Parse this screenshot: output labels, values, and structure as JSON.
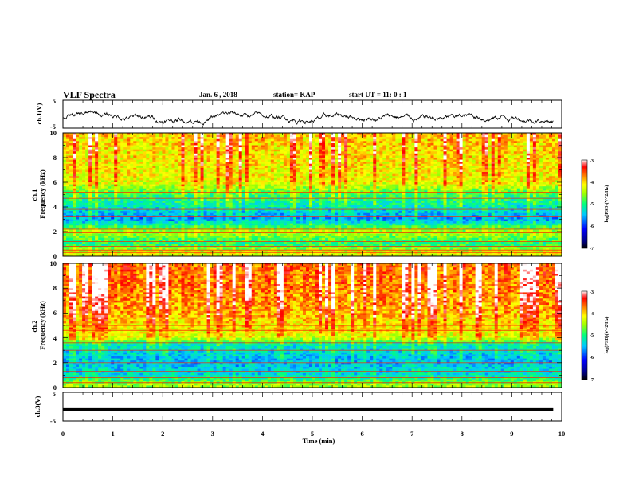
{
  "header": {
    "title": "VLF Spectra",
    "date": "Jan. 6 , 2018",
    "station": "station= KAP",
    "start_ut": "start UT = 11: 0 : 1"
  },
  "chart_data": [
    {
      "id": "ch1-waveform",
      "type": "line",
      "ylabel": "ch.1(V)",
      "ylim": [
        -5,
        5
      ],
      "yticks": [
        "5",
        "-5"
      ],
      "xlim": [
        0,
        10
      ],
      "series": [
        {
          "color": "#000000"
        }
      ]
    },
    {
      "id": "ch1-spectrogram",
      "type": "heatmap",
      "ylabel": "ch.1\nFrequency (kHz)",
      "ylim": [
        0,
        10
      ],
      "yticks": [
        "10",
        "8",
        "6",
        "4",
        "2",
        "0"
      ],
      "xlim": [
        0,
        10
      ],
      "colorbar": {
        "label": "log(PSD)(V^2/Hz)",
        "ticks": [
          "-3",
          "-4",
          "-5",
          "-6",
          "-7"
        ],
        "range": [
          -7,
          -3
        ]
      },
      "levels_by_frequency": [
        {
          "f": 10,
          "level": -3.8
        },
        {
          "f": 8,
          "level": -4.0
        },
        {
          "f": 6,
          "level": -4.1
        },
        {
          "f": 5,
          "level": -4.8
        },
        {
          "f": 4,
          "level": -5.2
        },
        {
          "f": 3,
          "level": -5.6
        },
        {
          "f": 2,
          "level": -4.4
        },
        {
          "f": 1,
          "level": -5.0
        },
        {
          "f": 0.3,
          "level": -4.2
        }
      ],
      "tones_khz": [
        0.3,
        0.5,
        0.8,
        1.2,
        1.9,
        2.2,
        3.2,
        3.8,
        4.7,
        5.2
      ]
    },
    {
      "id": "ch2-spectrogram",
      "type": "heatmap",
      "ylabel": "ch.2\nFrequency (kHz)",
      "ylim": [
        0,
        10
      ],
      "yticks": [
        "10",
        "8",
        "6",
        "4",
        "2",
        "0"
      ],
      "xlim": [
        0,
        10
      ],
      "colorbar": {
        "label": "log(PSD)(V^2/Hz)",
        "ticks": [
          "-3",
          "-4",
          "-5",
          "-6",
          "-7"
        ],
        "range": [
          -7,
          -3
        ]
      },
      "levels_by_frequency": [
        {
          "f": 10,
          "level": -3.5
        },
        {
          "f": 8,
          "level": -3.6
        },
        {
          "f": 6,
          "level": -3.8
        },
        {
          "f": 4,
          "level": -4.2
        },
        {
          "f": 3.5,
          "level": -5.2
        },
        {
          "f": 2,
          "level": -5.5
        },
        {
          "f": 1,
          "level": -5.3
        },
        {
          "f": 0.3,
          "level": -4.5
        }
      ],
      "tones_khz": [
        0.4,
        0.8,
        1.3,
        2.0,
        3.0,
        3.6,
        4.6,
        5.0
      ]
    },
    {
      "id": "ch3-waveform",
      "type": "line",
      "ylabel": "ch.3(V)",
      "ylim": [
        -5,
        5
      ],
      "yticks": [
        "5",
        "-5"
      ],
      "xlim": [
        0,
        10
      ],
      "xlabel": "Time (min)",
      "xticks": [
        "0",
        "1",
        "2",
        "3",
        "4",
        "5",
        "6",
        "7",
        "8",
        "9",
        "10"
      ],
      "series": [
        {
          "color": "#000000",
          "values": [
            -1,
            -1
          ]
        }
      ]
    }
  ]
}
